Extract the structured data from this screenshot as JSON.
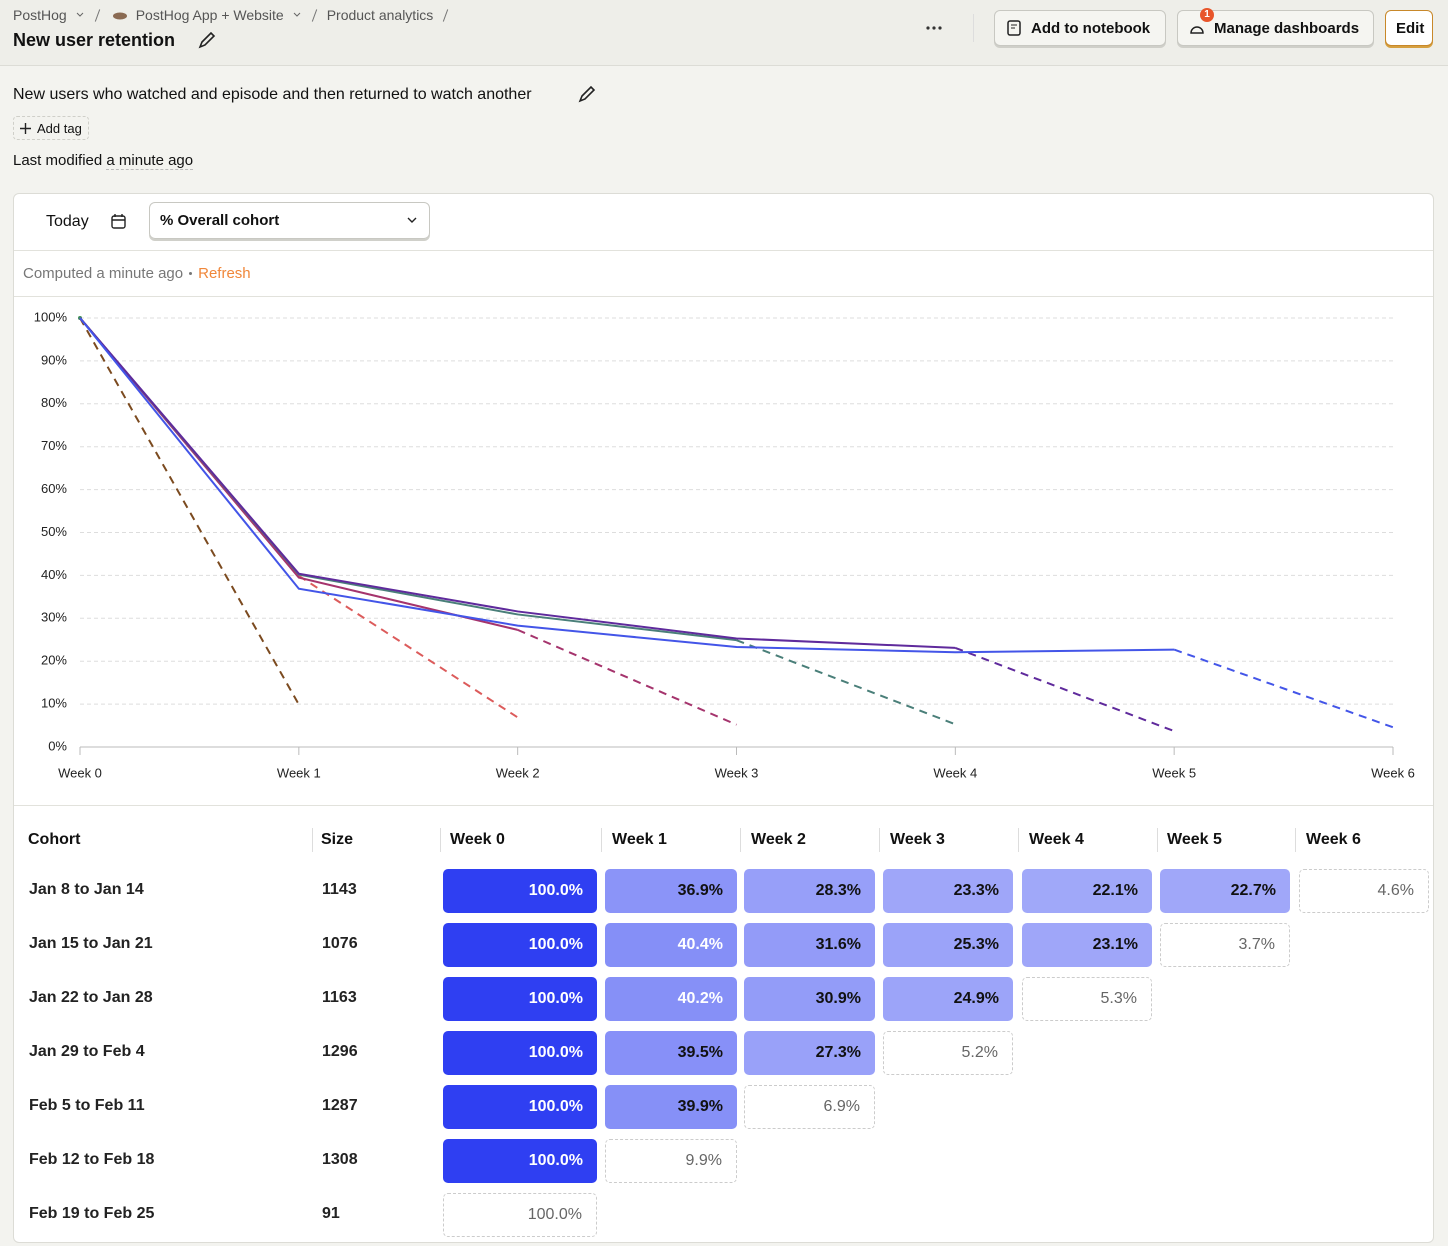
{
  "header": {
    "breadcrumbs": [
      "PostHog",
      "PostHog App + Website",
      "Product analytics"
    ],
    "title": "New user retention",
    "actions": [
      "Add to notebook",
      "Manage dashboards",
      "Edit"
    ],
    "notification_count": 1
  },
  "description": "New users who watched and episode and then returned to watch another",
  "add_tag": "Add tag",
  "last_modified": {
    "label": "Last modified",
    "value": "a minute ago"
  },
  "toolbar": {
    "date_range": "Today",
    "mode": "% Overall cohort"
  },
  "status": {
    "computed": "Computed a minute ago",
    "refresh": "Refresh"
  },
  "chart_data": {
    "type": "line",
    "categories": [
      "Week 0",
      "Week 1",
      "Week 2",
      "Week 3",
      "Week 4",
      "Week 5",
      "Week 6"
    ],
    "ylim": [
      0,
      100
    ],
    "yticks": [
      {
        "value": 0,
        "label": "0%"
      },
      {
        "value": 10,
        "label": "10%"
      },
      {
        "value": 20,
        "label": "20%"
      },
      {
        "value": 30,
        "label": "30%"
      },
      {
        "value": 40,
        "label": "40%"
      },
      {
        "value": 50,
        "label": "50%"
      },
      {
        "value": 60,
        "label": "60%"
      },
      {
        "value": 70,
        "label": "70%"
      },
      {
        "value": 80,
        "label": "80%"
      },
      {
        "value": 90,
        "label": "90%"
      },
      {
        "value": 100,
        "label": "100%"
      }
    ],
    "grid": true,
    "series": [
      {
        "name": "Jan 8 to Jan 14",
        "color": "#4355e8",
        "values": [
          100,
          36.9,
          28.3,
          23.3,
          22.1,
          22.7,
          4.6
        ],
        "value_labels": [
          "100.0%",
          "36.9%",
          "28.3%",
          "23.3%",
          "22.1%",
          "22.7%",
          "4.6%"
        ]
      },
      {
        "name": "Jan 15 to Jan 21",
        "color": "#5f2a9c",
        "values": [
          100,
          40.4,
          31.6,
          25.3,
          23.1,
          3.7,
          null
        ],
        "value_labels": [
          "100.0%",
          "40.4%",
          "31.6%",
          "25.3%",
          "23.1%",
          "3.7%",
          null
        ]
      },
      {
        "name": "Jan 22 to Jan 28",
        "color": "#4a7f79",
        "values": [
          100,
          40.2,
          30.9,
          24.9,
          5.3,
          null,
          null
        ],
        "value_labels": [
          "100.0%",
          "40.2%",
          "30.9%",
          "24.9%",
          "5.3%",
          null,
          null
        ]
      },
      {
        "name": "Jan 29 to Feb 4",
        "color": "#a5346d",
        "values": [
          100,
          39.5,
          27.3,
          5.2,
          null,
          null,
          null
        ],
        "value_labels": [
          "100.0%",
          "39.5%",
          "27.3%",
          "5.2%",
          null,
          null,
          null
        ]
      },
      {
        "name": "Feb 5 to Feb 11",
        "color": "#dc5b5b",
        "values": [
          100,
          39.9,
          6.9,
          null,
          null,
          null,
          null
        ],
        "value_labels": [
          "100.0%",
          "39.9%",
          "6.9%",
          null,
          null,
          null,
          null
        ]
      },
      {
        "name": "Feb 12 to Feb 18",
        "color": "#7b4a1f",
        "values": [
          100,
          9.9,
          null,
          null,
          null,
          null,
          null
        ],
        "value_labels": [
          "100.0%",
          "9.9%",
          null,
          null,
          null,
          null,
          null
        ]
      },
      {
        "name": "Feb 19 to Feb 25",
        "color": "#3f8f5b",
        "values": [
          100,
          null,
          null,
          null,
          null,
          null,
          null
        ],
        "value_labels": [
          "100.0%",
          null,
          null,
          null,
          null,
          null,
          null
        ]
      }
    ]
  },
  "table": {
    "headers": [
      "Cohort",
      "Size"
    ],
    "sizes": [
      1143,
      1076,
      1163,
      1296,
      1287,
      1308,
      91
    ],
    "color": "#2f3ff2"
  }
}
